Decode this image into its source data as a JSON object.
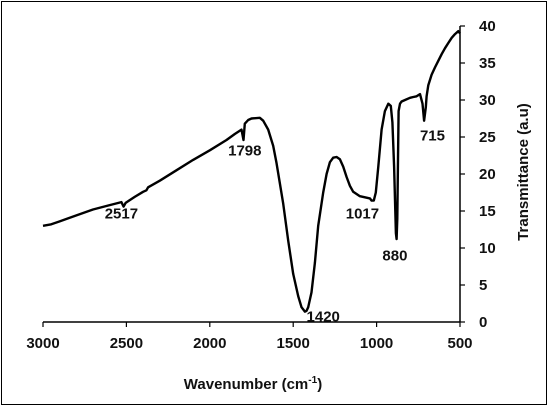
{
  "chart_data": {
    "type": "line",
    "xlabel": "Wavenumber (cm",
    "xlabel_sup": "-1",
    "xlabel_end": ")",
    "ylabel": "Transmittance (a.u)",
    "xlim": [
      3000,
      500
    ],
    "ylim": [
      0,
      40
    ],
    "x_ticks": [
      3000,
      2500,
      2000,
      1500,
      1000,
      500
    ],
    "y_ticks": [
      0,
      5,
      10,
      15,
      20,
      25,
      30,
      35,
      40
    ],
    "grid": false,
    "legend": "none",
    "line_color": "#000000",
    "series": [
      {
        "x": [
          3000,
          2950,
          2900,
          2850,
          2800,
          2700,
          2600,
          2530,
          2517,
          2505,
          2450,
          2400,
          2380,
          2370,
          2300,
          2200,
          2100,
          2000,
          1900,
          1850,
          1810,
          1798,
          1790,
          1770,
          1750,
          1700,
          1680,
          1650,
          1620,
          1600,
          1560,
          1530,
          1500,
          1470,
          1450,
          1430,
          1420,
          1410,
          1390,
          1370,
          1350,
          1320,
          1300,
          1280,
          1260,
          1240,
          1220,
          1200,
          1180,
          1160,
          1140,
          1100,
          1060,
          1040,
          1030,
          1017,
          1005,
          990,
          970,
          950,
          930,
          915,
          905,
          895,
          888,
          884,
          880,
          876,
          872,
          868,
          860,
          850,
          830,
          800,
          780,
          760,
          740,
          725,
          715,
          705,
          700,
          690,
          670,
          650,
          630,
          610,
          590,
          570,
          550,
          530,
          510,
          500
        ],
        "y": [
          13.0,
          13.2,
          13.6,
          14.0,
          14.4,
          15.2,
          15.8,
          16.2,
          15.6,
          16.1,
          16.9,
          17.6,
          17.8,
          18.2,
          19.1,
          20.5,
          21.9,
          23.2,
          24.6,
          25.4,
          26.0,
          24.6,
          26.8,
          27.3,
          27.5,
          27.6,
          27.2,
          26.0,
          23.8,
          21.5,
          16.0,
          11.0,
          6.5,
          3.5,
          2.0,
          1.4,
          1.5,
          2.0,
          4.0,
          8.0,
          13.0,
          17.5,
          20.0,
          21.6,
          22.2,
          22.3,
          22.0,
          21.0,
          19.6,
          18.4,
          17.6,
          17.0,
          16.8,
          16.7,
          16.4,
          16.4,
          17.5,
          21.0,
          26.0,
          28.5,
          29.5,
          29.2,
          27.0,
          21.0,
          15.0,
          12.0,
          11.2,
          14.0,
          22.0,
          28.5,
          29.5,
          29.8,
          30.0,
          30.3,
          30.4,
          30.5,
          30.8,
          29.5,
          27.2,
          29.0,
          30.5,
          32.0,
          33.4,
          34.4,
          35.3,
          36.2,
          37.0,
          37.7,
          38.4,
          38.9,
          39.3,
          39.0
        ]
      }
    ],
    "annotations": [
      {
        "text": "2517",
        "x": 2530,
        "y": 14.0
      },
      {
        "text": "1798",
        "x": 1790,
        "y": 22.5
      },
      {
        "text": "1420",
        "x": 1320,
        "y": 0.1
      },
      {
        "text": "1017",
        "x": 1085,
        "y": 14.0
      },
      {
        "text": "880",
        "x": 890,
        "y": 8.3
      },
      {
        "text": "715",
        "x": 665,
        "y": 24.5
      }
    ]
  }
}
